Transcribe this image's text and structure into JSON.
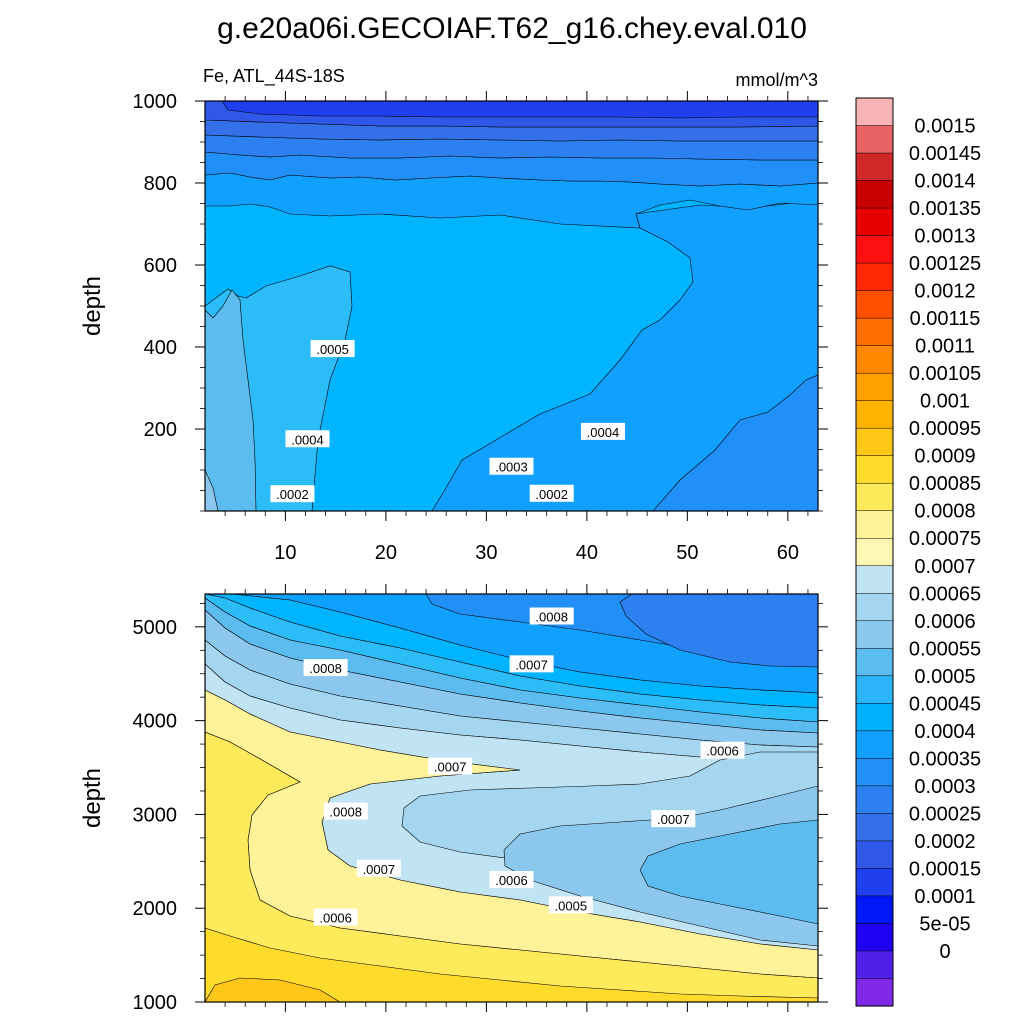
{
  "title": "g.e20a06i.GECOIAF.T62_g16.chey.eval.010",
  "variable_label": "Fe, ATL_44S-18S",
  "units_label": "mmol/m^3",
  "chart_data": [
    {
      "type": "contour",
      "panel": "upper",
      "ylabel": "depth",
      "xlim": [
        2,
        63
      ],
      "ylim": [
        1000,
        0
      ],
      "x_ticks": [
        10,
        20,
        30,
        40,
        50,
        60
      ],
      "y_ticks": [
        200,
        400,
        600,
        800,
        1000
      ],
      "contour_labels": [
        {
          "text": ".0002",
          "x": 10.7,
          "y": 41
        },
        {
          "text": ".0002",
          "x": 36.5,
          "y": 42
        },
        {
          "text": ".0003",
          "x": 32.5,
          "y": 108
        },
        {
          "text": ".0004",
          "x": 12.2,
          "y": 175
        },
        {
          "text": ".0004",
          "x": 41.6,
          "y": 193
        },
        {
          "text": ".0005",
          "x": 14.7,
          "y": 395
        }
      ]
    },
    {
      "type": "contour",
      "panel": "lower",
      "ylabel": "depth",
      "xlim": [
        2,
        63
      ],
      "ylim": [
        5350,
        1000
      ],
      "y_ticks": [
        1000,
        2000,
        3000,
        4000,
        5000
      ],
      "contour_labels": [
        {
          "text": ".0006",
          "x": 15.0,
          "y": 1900
        },
        {
          "text": ".0005",
          "x": 38.4,
          "y": 2030
        },
        {
          "text": ".0006",
          "x": 32.5,
          "y": 2300
        },
        {
          "text": ".0007",
          "x": 19.3,
          "y": 2420
        },
        {
          "text": ".0008",
          "x": 16.0,
          "y": 3030
        },
        {
          "text": ".0007",
          "x": 48.6,
          "y": 2950
        },
        {
          "text": ".0007",
          "x": 26.4,
          "y": 3510
        },
        {
          "text": ".0006",
          "x": 53.5,
          "y": 3680
        },
        {
          "text": ".0008",
          "x": 14.0,
          "y": 4560
        },
        {
          "text": ".0007",
          "x": 34.5,
          "y": 4600
        },
        {
          "text": ".0008",
          "x": 36.5,
          "y": 5110
        }
      ]
    }
  ],
  "colorbar": {
    "labels": [
      "0.0015",
      "0.00145",
      "0.0014",
      "0.00135",
      "0.0013",
      "0.00125",
      "0.0012",
      "0.00115",
      "0.0011",
      "0.00105",
      "0.001",
      "0.00095",
      "0.0009",
      "0.00085",
      "0.0008",
      "0.00075",
      "0.0007",
      "0.00065",
      "0.0006",
      "0.00055",
      "0.0005",
      "0.00045",
      "0.0004",
      "0.00035",
      "0.0003",
      "0.00025",
      "0.0002",
      "0.00015",
      "0.0001",
      "5e-05",
      "0"
    ],
    "colors": [
      "#f8b4b4",
      "#e86464",
      "#d02828",
      "#c80000",
      "#e80000",
      "#ff1010",
      "#ff2800",
      "#ff5000",
      "#ff6e00",
      "#ff8800",
      "#ffa000",
      "#ffb400",
      "#ffc818",
      "#ffdc2c",
      "#ffea5c",
      "#fff298",
      "#fff8b4",
      "#c0e4f4",
      "#a4d6f0",
      "#8cc8ee",
      "#5cbcf0",
      "#2cb4f8",
      "#00b0ff",
      "#10a0ff",
      "#2090f8",
      "#2c80f0",
      "#3470e8",
      "#3058e8",
      "#2040f0",
      "#0018f8",
      "#2000f0",
      "#5020e8",
      "#8028e8"
    ]
  }
}
